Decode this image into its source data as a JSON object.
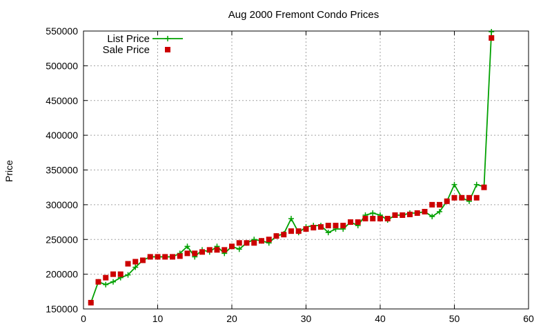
{
  "chart_data": {
    "type": "line",
    "title": "Aug 2000 Fremont Condo Prices",
    "xlabel": "",
    "ylabel": "Price",
    "xlim": [
      0,
      60
    ],
    "ylim": [
      150000,
      550000
    ],
    "xticks": [
      0,
      10,
      20,
      30,
      40,
      50,
      60
    ],
    "yticks": [
      150000,
      200000,
      250000,
      300000,
      350000,
      400000,
      450000,
      500000,
      550000
    ],
    "grid": true,
    "legend_position": "top-left",
    "x": [
      1,
      2,
      3,
      4,
      5,
      6,
      7,
      8,
      9,
      10,
      11,
      12,
      13,
      14,
      15,
      16,
      17,
      18,
      19,
      20,
      21,
      22,
      23,
      24,
      25,
      26,
      27,
      28,
      29,
      30,
      31,
      32,
      33,
      34,
      35,
      36,
      37,
      38,
      39,
      40,
      41,
      42,
      43,
      44,
      45,
      46,
      47,
      48,
      49,
      50,
      51,
      52,
      53,
      54,
      55
    ],
    "series": [
      {
        "name": "List Price",
        "style": "line-cross",
        "color": "#00a000",
        "values": [
          159000,
          189000,
          185000,
          189000,
          195000,
          199000,
          210000,
          220000,
          225000,
          225000,
          225000,
          225000,
          230000,
          240000,
          225000,
          235000,
          232000,
          240000,
          230000,
          240000,
          236000,
          245000,
          250000,
          248000,
          245000,
          255000,
          258000,
          280000,
          260000,
          268000,
          270000,
          270000,
          260000,
          265000,
          265000,
          275000,
          270000,
          285000,
          288000,
          285000,
          278000,
          285000,
          285000,
          288000,
          288000,
          290000,
          283000,
          290000,
          305000,
          329000,
          310000,
          305000,
          329000,
          326000,
          549000
        ]
      },
      {
        "name": "Sale Price",
        "style": "square",
        "color": "#cc0000",
        "values": [
          159000,
          189000,
          195000,
          200000,
          200000,
          215000,
          218000,
          220000,
          225000,
          225000,
          225000,
          225000,
          226000,
          230000,
          230000,
          232000,
          235000,
          235000,
          235000,
          240000,
          245000,
          245000,
          245000,
          248000,
          250000,
          255000,
          257000,
          262000,
          262000,
          265000,
          267000,
          268000,
          270000,
          270000,
          270000,
          275000,
          275000,
          280000,
          280000,
          280000,
          280000,
          285000,
          285000,
          286000,
          288000,
          290000,
          300000,
          300000,
          305000,
          310000,
          310000,
          310000,
          310000,
          325000,
          540000
        ]
      }
    ]
  }
}
